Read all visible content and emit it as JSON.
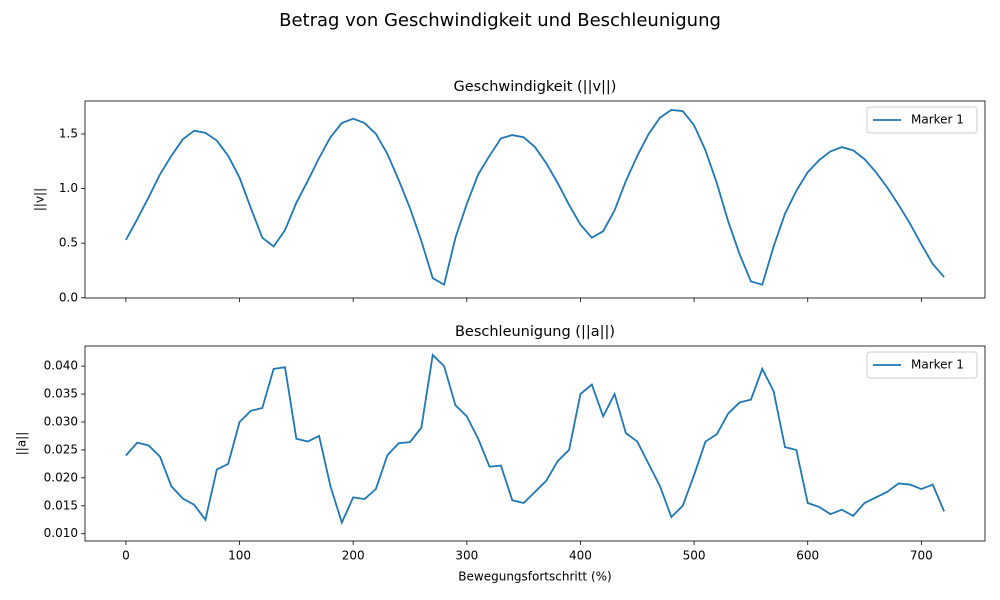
{
  "title": "Betrag von Geschwindigkeit und Beschleunigung",
  "chart_data": [
    {
      "type": "line",
      "title": "Geschwindigkeit (||v||)",
      "ylabel": "||v||",
      "legend": "upper right",
      "x": [
        0,
        10,
        20,
        30,
        40,
        50,
        60,
        70,
        80,
        90,
        100,
        110,
        120,
        130,
        140,
        150,
        160,
        170,
        180,
        190,
        200,
        210,
        220,
        230,
        240,
        250,
        260,
        270,
        280,
        290,
        300,
        310,
        320,
        330,
        340,
        350,
        360,
        370,
        380,
        390,
        400,
        410,
        420,
        430,
        440,
        450,
        460,
        470,
        480,
        490,
        500,
        510,
        520,
        530,
        540,
        550,
        560,
        570,
        580,
        590,
        600,
        610,
        620,
        630,
        640,
        650,
        660,
        670,
        680,
        690,
        700,
        710,
        720
      ],
      "series": [
        {
          "name": "Marker 1",
          "color": "#1f77b4",
          "values": [
            0.53,
            0.72,
            0.92,
            1.13,
            1.3,
            1.45,
            1.53,
            1.51,
            1.44,
            1.3,
            1.1,
            0.82,
            0.55,
            0.47,
            0.62,
            0.87,
            1.07,
            1.28,
            1.47,
            1.6,
            1.64,
            1.6,
            1.5,
            1.32,
            1.08,
            0.82,
            0.52,
            0.18,
            0.12,
            0.55,
            0.86,
            1.13,
            1.3,
            1.46,
            1.49,
            1.47,
            1.38,
            1.23,
            1.05,
            0.85,
            0.67,
            0.55,
            0.61,
            0.8,
            1.07,
            1.3,
            1.5,
            1.65,
            1.72,
            1.71,
            1.58,
            1.35,
            1.05,
            0.7,
            0.4,
            0.15,
            0.12,
            0.47,
            0.77,
            0.98,
            1.15,
            1.26,
            1.34,
            1.38,
            1.35,
            1.27,
            1.15,
            1.01,
            0.85,
            0.68,
            0.49,
            0.31,
            0.19
          ]
        }
      ],
      "xlim": [
        -36,
        756
      ],
      "xticks": [
        0,
        100,
        200,
        300,
        400,
        500,
        600,
        700
      ],
      "ylim": [
        -0.002,
        1.802
      ],
      "yticks": [
        {
          "value": 0,
          "label": "0.0"
        },
        0.5,
        {
          "value": 1,
          "label": "1.0"
        },
        1.5
      ]
    },
    {
      "type": "line",
      "title": "Beschleunigung (||a||)",
      "xlabel": "Bewegungsfortschritt (%)",
      "ylabel": "||a||",
      "legend": "upper right",
      "x": [
        0,
        10,
        20,
        30,
        40,
        50,
        60,
        70,
        80,
        90,
        100,
        110,
        120,
        130,
        140,
        150,
        160,
        170,
        180,
        190,
        200,
        210,
        220,
        230,
        240,
        250,
        260,
        270,
        280,
        290,
        300,
        310,
        320,
        330,
        340,
        350,
        360,
        370,
        380,
        390,
        400,
        410,
        420,
        430,
        440,
        450,
        460,
        470,
        480,
        490,
        500,
        510,
        520,
        530,
        540,
        550,
        560,
        570,
        580,
        590,
        600,
        610,
        620,
        630,
        640,
        650,
        660,
        670,
        680,
        690,
        700,
        710,
        720
      ],
      "series": [
        {
          "name": "Marker 1",
          "color": "#1f77b4",
          "values": [
            0.024,
            0.0263,
            0.0258,
            0.0238,
            0.0185,
            0.0163,
            0.0152,
            0.0125,
            0.0215,
            0.0225,
            0.03,
            0.032,
            0.0325,
            0.0395,
            0.0398,
            0.027,
            0.0265,
            0.0275,
            0.0185,
            0.012,
            0.0165,
            0.0162,
            0.018,
            0.024,
            0.0262,
            0.0264,
            0.029,
            0.042,
            0.04,
            0.033,
            0.031,
            0.027,
            0.022,
            0.0222,
            0.016,
            0.0155,
            0.0175,
            0.0195,
            0.023,
            0.025,
            0.035,
            0.0367,
            0.031,
            0.035,
            0.028,
            0.0265,
            0.0225,
            0.0185,
            0.013,
            0.015,
            0.0205,
            0.0265,
            0.0278,
            0.0315,
            0.0335,
            0.034,
            0.0395,
            0.0355,
            0.0255,
            0.025,
            0.0155,
            0.0148,
            0.0135,
            0.0143,
            0.0132,
            0.0155,
            0.0165,
            0.0175,
            0.019,
            0.0188,
            0.018,
            0.0188,
            0.014
          ]
        }
      ],
      "xlim": [
        -36,
        756
      ],
      "xticks": [
        0,
        100,
        200,
        300,
        400,
        500,
        600,
        700
      ],
      "ylim": [
        0.0087,
        0.0436
      ],
      "yticks": [
        {
          "value": 0.01,
          "label": "0.010"
        },
        0.015,
        {
          "value": 0.02,
          "label": "0.020"
        },
        0.025,
        {
          "value": 0.03,
          "label": "0.030"
        },
        0.035,
        {
          "value": 0.04,
          "label": "0.040"
        }
      ]
    }
  ]
}
